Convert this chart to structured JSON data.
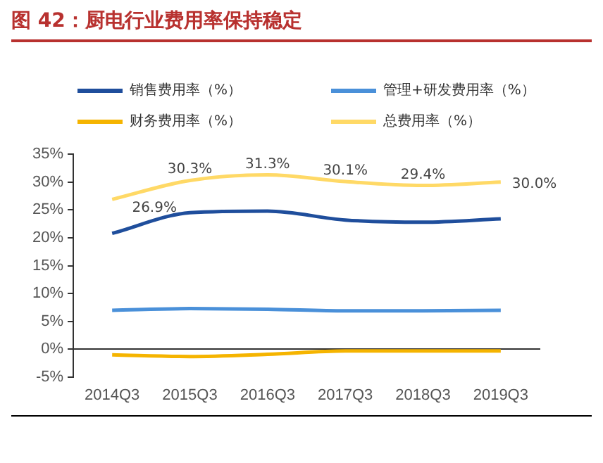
{
  "chart_data": {
    "type": "line",
    "title": "图 42：厨电行业费用率保持稳定",
    "categories": [
      "2014Q3",
      "2015Q3",
      "2016Q3",
      "2017Q3",
      "2018Q3",
      "2019Q3"
    ],
    "series": [
      {
        "name": "销售费用率（%）",
        "color": "#1f4e9c",
        "values": [
          20.8,
          24.5,
          24.8,
          23.2,
          22.8,
          23.4
        ]
      },
      {
        "name": "管理+研发费用率（%）",
        "color": "#4a90d9",
        "values": [
          7.0,
          7.3,
          7.2,
          6.9,
          6.9,
          7.0
        ]
      },
      {
        "name": "财务费用率（%）",
        "color": "#f5b400",
        "values": [
          -1.0,
          -1.3,
          -0.9,
          -0.3,
          -0.3,
          -0.3
        ]
      },
      {
        "name": "总费用率（%）",
        "color": "#ffd966",
        "values": [
          26.9,
          30.3,
          31.3,
          30.1,
          29.4,
          30.0
        ],
        "value_labels": [
          "26.9%",
          "30.3%",
          "31.3%",
          "30.1%",
          "29.4%",
          "30.0%"
        ]
      }
    ],
    "ylim": [
      -5,
      35
    ],
    "yticks": [
      {
        "value": -5,
        "label": "-5%"
      },
      {
        "value": 0,
        "label": "0%"
      },
      {
        "value": 5,
        "label": "5%"
      },
      {
        "value": 10,
        "label": "10%"
      },
      {
        "value": 15,
        "label": "15%"
      },
      {
        "value": 20,
        "label": "20%"
      },
      {
        "value": 25,
        "label": "25%"
      },
      {
        "value": 30,
        "label": "30%"
      },
      {
        "value": 35,
        "label": "35%"
      }
    ],
    "grid": false,
    "legend": "top",
    "marker": "none",
    "line_style": "solid"
  }
}
